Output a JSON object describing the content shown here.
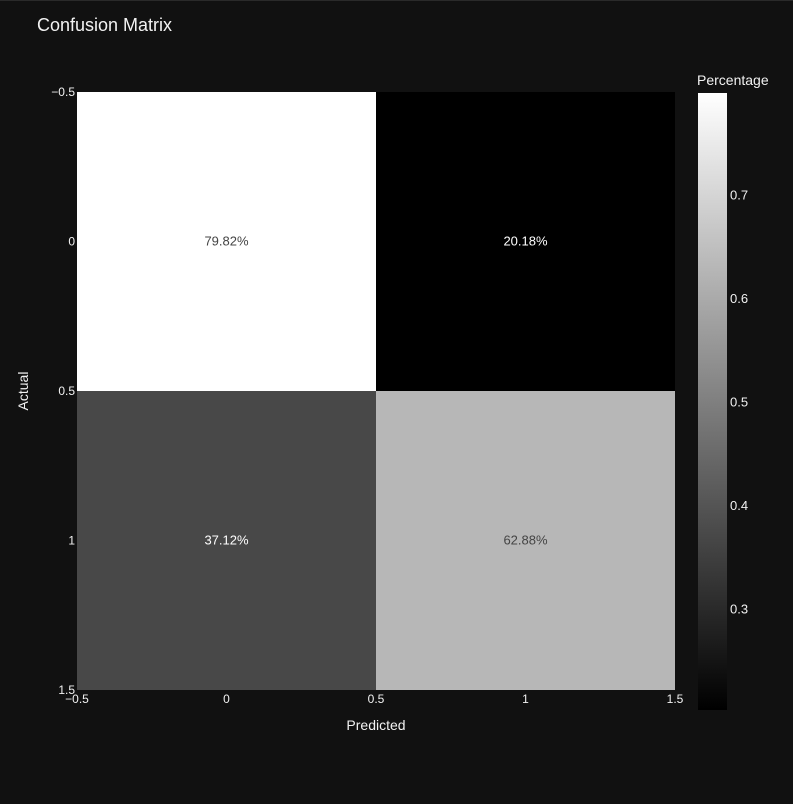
{
  "chart_data": {
    "type": "heatmap",
    "title": "Confusion Matrix",
    "xlabel": "Predicted",
    "ylabel": "Actual",
    "x": [
      0,
      1
    ],
    "y": [
      0,
      1
    ],
    "xlim": [
      -0.5,
      1.5
    ],
    "ylim": [
      -0.5,
      1.5
    ],
    "y_reversed": true,
    "x_ticks": [
      {
        "value": -0.5,
        "label": "−0.5"
      },
      {
        "value": 0,
        "label": "0"
      },
      {
        "value": 0.5,
        "label": "0.5"
      },
      {
        "value": 1,
        "label": "1"
      },
      {
        "value": 1.5,
        "label": "1.5"
      }
    ],
    "y_ticks": [
      {
        "value": -0.5,
        "label": "−0.5"
      },
      {
        "value": 0,
        "label": "0"
      },
      {
        "value": 0.5,
        "label": "0.5"
      },
      {
        "value": 1,
        "label": "1"
      },
      {
        "value": 1.5,
        "label": "1.5"
      }
    ],
    "z": [
      [
        0.7982,
        0.2018
      ],
      [
        0.3712,
        0.6288
      ]
    ],
    "text": [
      [
        "79.82%",
        "20.18%"
      ],
      [
        "37.12%",
        "62.88%"
      ]
    ],
    "colorscale": "Greys",
    "colorbar": {
      "title": "Percentage",
      "zmin": 0.2018,
      "zmax": 0.7982,
      "ticks": [
        {
          "value": 0.3,
          "label": "0.3"
        },
        {
          "value": 0.4,
          "label": "0.4"
        },
        {
          "value": 0.5,
          "label": "0.5"
        },
        {
          "value": 0.6,
          "label": "0.6"
        },
        {
          "value": 0.7,
          "label": "0.7"
        }
      ]
    },
    "grid": false,
    "background": "#111111"
  }
}
